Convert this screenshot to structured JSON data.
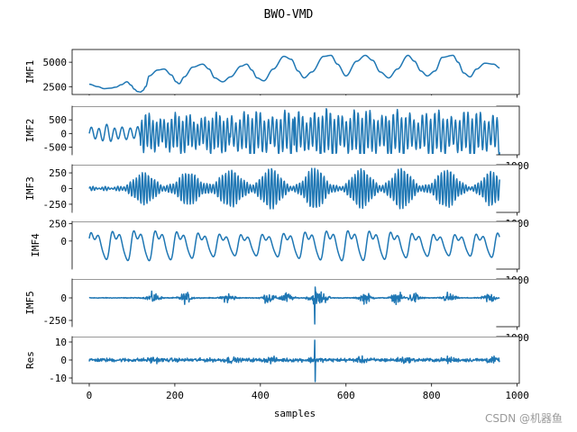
{
  "chart_data": {
    "type": "line",
    "title": "BWO-VMD",
    "xlabel": "samples",
    "xlim": [
      -40,
      1005
    ],
    "x_ticks": [
      0,
      200,
      400,
      600,
      800,
      1000
    ],
    "n_samples": 960,
    "line_color": "#1f77b4",
    "series": [
      {
        "name": "IMF1",
        "ylim": [
          1700,
          6300
        ],
        "y_ticks": [
          2500,
          5000
        ],
        "y_tick_labels": [
          "2500",
          "5000"
        ],
        "anchor_x": [
          0,
          20,
          35,
          50,
          62,
          75,
          88,
          98,
          105,
          113,
          120,
          125,
          132,
          140,
          160,
          175,
          192,
          203,
          210,
          222,
          242,
          265,
          280,
          293,
          312,
          330,
          355,
          368,
          380,
          392,
          408,
          430,
          455,
          472,
          488,
          502,
          520,
          548,
          565,
          580,
          600,
          625,
          645,
          662,
          680,
          700,
          720,
          745,
          760,
          775,
          790,
          808,
          825,
          850,
          862,
          875,
          890,
          905,
          925,
          945,
          960
        ],
        "anchor_y": [
          2750,
          2500,
          2300,
          2350,
          2450,
          2700,
          3000,
          2650,
          2250,
          2000,
          1950,
          2100,
          2500,
          3600,
          4200,
          4300,
          3700,
          3000,
          2800,
          3500,
          4500,
          4800,
          4300,
          3400,
          3000,
          3500,
          4600,
          4800,
          4200,
          3400,
          3100,
          4300,
          5600,
          5300,
          4100,
          3400,
          4000,
          5600,
          5700,
          4800,
          3600,
          5100,
          5700,
          5200,
          4000,
          3400,
          4300,
          5700,
          5100,
          4100,
          3600,
          4100,
          5500,
          5700,
          5000,
          3900,
          3500,
          4300,
          4900,
          4800,
          4400
        ]
      },
      {
        "name": "IMF2",
        "ylim": [
          -780,
          1000
        ],
        "y_ticks": [
          -500,
          0,
          500
        ],
        "y_tick_labels": [
          "-500",
          "0",
          "500"
        ],
        "x_ticks_extra": [
          1000
        ],
        "x_tick_extra_labels": [
          "1000"
        ],
        "segments": [
          [
            0,
            240,
            270,
            0.055,
            0
          ],
          [
            120,
            330,
            640,
            0.115,
            0.8
          ],
          [
            330,
            480,
            720,
            0.105,
            1.7
          ],
          [
            480,
            700,
            760,
            0.108,
            2.4
          ],
          [
            700,
            960,
            720,
            0.103,
            0.5
          ]
        ],
        "amp_mod": 0.35,
        "amp_mod_period": 85
      },
      {
        "name": "IMF3",
        "ylim": [
          -380,
          380
        ],
        "y_ticks": [
          -250,
          0,
          250
        ],
        "y_tick_labels": [
          "-250",
          "0",
          "250"
        ],
        "x_ticks_extra": [
          1000
        ],
        "x_tick_extra_labels": [
          "1000"
        ],
        "carrier_period": 7.2,
        "base_amp": 35,
        "bursts": [
          [
            128,
            30,
            230
          ],
          [
            232,
            30,
            240
          ],
          [
            330,
            32,
            270
          ],
          [
            425,
            28,
            300
          ],
          [
            527,
            28,
            310
          ],
          [
            636,
            28,
            290
          ],
          [
            730,
            28,
            300
          ],
          [
            835,
            30,
            280
          ],
          [
            940,
            26,
            250
          ]
        ]
      },
      {
        "name": "IMF4",
        "ylim": [
          -400,
          280
        ],
        "y_ticks": [
          0,
          250
        ],
        "y_tick_labels": [
          "0",
          "250"
        ],
        "x_ticks_extra": [
          1000
        ],
        "x_tick_extra_labels": [
          "1000"
        ],
        "period": 50,
        "amp": 290,
        "offset": -40
      },
      {
        "name": "IMF5",
        "ylim": [
          -320,
          210
        ],
        "y_ticks": [
          -250,
          0
        ],
        "y_tick_labels": [
          "-250",
          "0"
        ],
        "x_ticks_extra": [
          1000
        ],
        "x_tick_extra_labels": [
          "1000"
        ],
        "noise_amp": 6,
        "burst_centers": [
          150,
          225,
          325,
          418,
          460,
          527,
          545,
          645,
          720,
          760,
          840,
          935
        ],
        "burst_width": 14,
        "burst_amp": 90,
        "spike": [
          527,
          -290
        ]
      },
      {
        "name": "Res",
        "ylim": [
          -13,
          13
        ],
        "y_ticks": [
          -10,
          0,
          10
        ],
        "y_tick_labels": [
          "-10",
          "0",
          "10"
        ],
        "x_tick_labels": [
          "0",
          "200",
          "400",
          "600",
          "800",
          "1000"
        ],
        "noise_amp": 1.4,
        "spike": [
          527,
          11,
          -12
        ]
      }
    ]
  },
  "watermark": "CSDN @机器鱼"
}
